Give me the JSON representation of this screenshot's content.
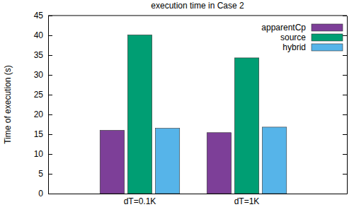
{
  "chart_data": {
    "type": "bar",
    "title": "execution time in Case 2",
    "y_label": "Time of execution (s)",
    "categories": [
      "dT=0.1K",
      "dT=1K"
    ],
    "series": [
      {
        "name": "apparentCp",
        "color": "#7d3f98",
        "values": [
          16.0,
          15.4
        ]
      },
      {
        "name": "source",
        "color": "#009e73",
        "values": [
          40.1,
          34.3
        ]
      },
      {
        "name": "hybrid",
        "color": "#56b4e9",
        "values": [
          16.5,
          16.8
        ]
      }
    ],
    "ylim": [
      0,
      45
    ],
    "yticks": [
      0,
      5,
      10,
      15,
      20,
      25,
      30,
      35,
      40,
      45
    ],
    "legend": "top-right"
  }
}
